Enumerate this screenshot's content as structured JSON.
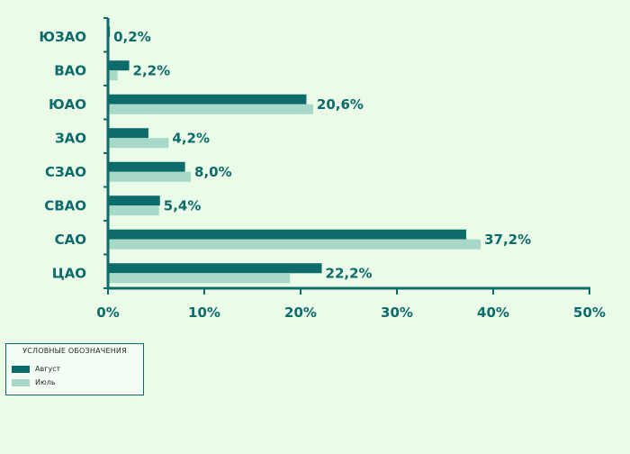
{
  "chart_data": {
    "type": "bar",
    "orientation": "horizontal",
    "categories": [
      "ЮЗАО",
      "ВАО",
      "ЮАО",
      "ЗАО",
      "СЗАО",
      "СВАО",
      "САО",
      "ЦАО"
    ],
    "series": [
      {
        "name": "Август",
        "color": "#0d6b6b",
        "values": [
          0.2,
          2.2,
          20.6,
          4.2,
          8.0,
          5.4,
          37.2,
          22.2
        ]
      },
      {
        "name": "Июль",
        "color": "#a8d8c8",
        "values": [
          0.1,
          1.0,
          21.3,
          6.3,
          8.6,
          5.3,
          38.7,
          18.9
        ]
      }
    ],
    "value_labels": [
      "0,2%",
      "2,2%",
      "20,6%",
      "4,2%",
      "8,0%",
      "5,4%",
      "37,2%",
      "22,2%"
    ],
    "x_ticks": [
      "0%",
      "10%",
      "20%",
      "30%",
      "40%",
      "50%"
    ],
    "xlim": [
      0,
      50
    ],
    "grid": false,
    "legend": {
      "title": "УСЛОВНЫЕ ОБОЗНАЧЕНИЯ",
      "placement": "bottom-left"
    }
  }
}
